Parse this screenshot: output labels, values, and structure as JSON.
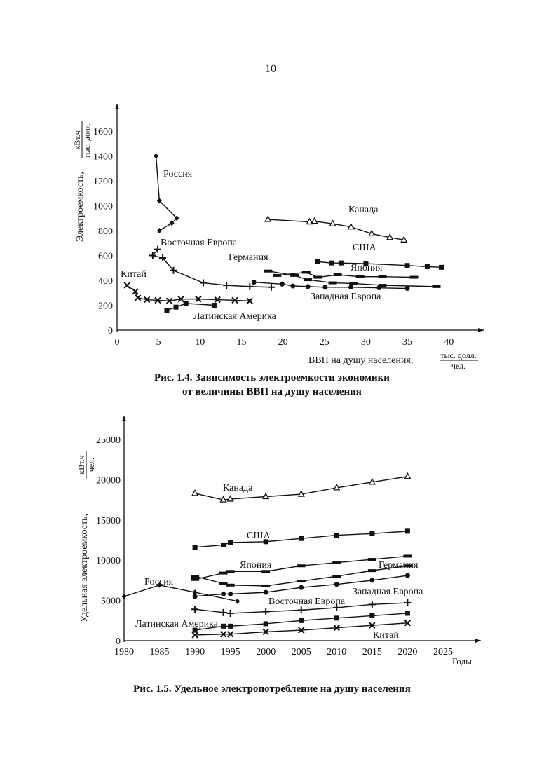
{
  "page_number": "10",
  "chart_data": [
    {
      "type": "line",
      "title": "Рис. 1.4. Зависимость электроемкости экономики",
      "subtitle": "от величины ВВП на душу населения",
      "xlabel": "ВВП на душу населения,",
      "xunit_num": "тыс. долл.",
      "xunit_den": "чел.",
      "ylabel": "Электроемкость,",
      "yunit_num": "кВт.ч",
      "yunit_den": "тыс. долл.",
      "xlim": [
        0,
        40
      ],
      "ylim": [
        0,
        1600
      ],
      "xticks": [
        "0",
        "5",
        "10",
        "15",
        "20",
        "25",
        "30",
        "35",
        "40"
      ],
      "yticks": [
        "0",
        "200",
        "400",
        "600",
        "800",
        "1000",
        "1200",
        "1400",
        "1600"
      ],
      "grid": false,
      "series": [
        {
          "name": "Россия",
          "marker": "diamond",
          "points": [
            [
              4.7,
              1400
            ],
            [
              5.1,
              1040
            ],
            [
              7.2,
              900
            ],
            [
              6.6,
              860
            ],
            [
              5.1,
              800
            ]
          ]
        },
        {
          "name": "Восточная Европа",
          "marker": "plus",
          "points": [
            [
              4.9,
              650
            ],
            [
              4.3,
              600
            ],
            [
              5.5,
              580
            ],
            [
              6.8,
              480
            ],
            [
              10.4,
              380
            ],
            [
              13.2,
              360
            ],
            [
              16,
              350
            ],
            [
              18.6,
              345
            ]
          ]
        },
        {
          "name": "Германия",
          "marker": "dash",
          "points": [
            [
              18.2,
              475
            ],
            [
              21.4,
              440
            ],
            [
              23,
              405
            ],
            [
              26,
              380
            ],
            [
              28.5,
              375
            ],
            [
              32,
              360
            ],
            [
              38.5,
              350
            ]
          ]
        },
        {
          "name": "Китай",
          "marker": "cross",
          "points": [
            [
              1.2,
              360
            ],
            [
              2.2,
              310
            ],
            [
              2.5,
              260
            ],
            [
              3.6,
              245
            ],
            [
              4.9,
              240
            ],
            [
              6.3,
              235
            ],
            [
              7.7,
              250
            ],
            [
              9.8,
              250
            ],
            [
              12.1,
              245
            ],
            [
              14.2,
              240
            ],
            [
              16,
              235
            ]
          ]
        },
        {
          "name": "Латинская Америка",
          "marker": "square",
          "points": [
            [
              6,
              160
            ],
            [
              7.1,
              185
            ],
            [
              8.3,
              215
            ],
            [
              11.7,
              200
            ]
          ]
        },
        {
          "name": "Канада",
          "marker": "triangle",
          "points": [
            [
              18.2,
              890
            ],
            [
              23.2,
              870
            ],
            [
              23.8,
              875
            ],
            [
              26,
              855
            ],
            [
              28.2,
              830
            ],
            [
              30.7,
              775
            ],
            [
              32.9,
              745
            ],
            [
              34.6,
              725
            ]
          ]
        },
        {
          "name": "США",
          "marker": "square",
          "points": [
            [
              24.2,
              550
            ],
            [
              25.9,
              540
            ],
            [
              27,
              540
            ],
            [
              30,
              535
            ],
            [
              35,
              520
            ],
            [
              37.4,
              510
            ],
            [
              39.1,
              505
            ]
          ]
        },
        {
          "name": "Япония",
          "marker": "dash",
          "points": [
            [
              19.3,
              440
            ],
            [
              22.8,
              465
            ],
            [
              24.2,
              425
            ],
            [
              26.6,
              445
            ],
            [
              29.3,
              430
            ],
            [
              32,
              430
            ],
            [
              35.8,
              425
            ]
          ]
        },
        {
          "name": "Западная Европа",
          "marker": "circle",
          "points": [
            [
              16.5,
              385
            ],
            [
              19.9,
              370
            ],
            [
              21.2,
              355
            ],
            [
              23,
              350
            ],
            [
              25.1,
              345
            ],
            [
              28.2,
              345
            ],
            [
              31.6,
              340
            ],
            [
              35,
              335
            ]
          ]
        }
      ]
    },
    {
      "type": "line",
      "title": "Рис. 1.5. Удельное электропотребление на душу населения",
      "xlabel": "Годы",
      "ylabel": "Удельная электроемкость,",
      "yunit_num": "кВт.ч",
      "yunit_den": "чел.",
      "xlim": [
        1980,
        2030
      ],
      "ylim": [
        0,
        27000
      ],
      "xticks": [
        "1980",
        "1985",
        "1990",
        "1995",
        "2000",
        "2005",
        "2010",
        "2015",
        "2020",
        "2025"
      ],
      "yticks": [
        "0",
        "5000",
        "10000",
        "15000",
        "20000",
        "25000"
      ],
      "grid": false,
      "series": [
        {
          "name": "Канада",
          "marker": "triangle",
          "points": [
            [
              1990,
              18300
            ],
            [
              1994,
              17500
            ],
            [
              1995,
              17600
            ],
            [
              2000,
              17900
            ],
            [
              2005,
              18200
            ],
            [
              2010,
              19000
            ],
            [
              2015,
              19700
            ],
            [
              2020,
              20400
            ]
          ]
        },
        {
          "name": "США",
          "marker": "square",
          "points": [
            [
              1990,
              11600
            ],
            [
              1994,
              11900
            ],
            [
              1995,
              12200
            ],
            [
              2000,
              12300
            ],
            [
              2005,
              12700
            ],
            [
              2010,
              13100
            ],
            [
              2015,
              13300
            ],
            [
              2020,
              13600
            ]
          ]
        },
        {
          "name": "Япония",
          "marker": "dash",
          "points": [
            [
              1990,
              7600
            ],
            [
              1994,
              8400
            ],
            [
              1995,
              8600
            ],
            [
              2000,
              8600
            ],
            [
              2005,
              9300
            ],
            [
              2010,
              9700
            ],
            [
              2015,
              10100
            ],
            [
              2020,
              10500
            ]
          ]
        },
        {
          "name": "Германия",
          "marker": "dash",
          "points": [
            [
              1990,
              8000
            ],
            [
              1994,
              7100
            ],
            [
              1995,
              6900
            ],
            [
              2000,
              6800
            ],
            [
              2005,
              7400
            ],
            [
              2010,
              8000
            ],
            [
              2015,
              8700
            ],
            [
              2020,
              9300
            ]
          ]
        },
        {
          "name": "Россия",
          "marker": "diamond",
          "points": [
            [
              1980,
              5500
            ],
            [
              1985,
              6900
            ],
            [
              1990,
              6000
            ],
            [
              1996,
              4900
            ]
          ]
        },
        {
          "name": "Западная Европа",
          "marker": "circle",
          "points": [
            [
              1990,
              5500
            ],
            [
              1994,
              5800
            ],
            [
              1995,
              5800
            ],
            [
              2000,
              6000
            ],
            [
              2005,
              6600
            ],
            [
              2010,
              7000
            ],
            [
              2015,
              7500
            ],
            [
              2020,
              8100
            ]
          ]
        },
        {
          "name": "Восточная Европа",
          "marker": "plus",
          "points": [
            [
              1990,
              3900
            ],
            [
              1994,
              3500
            ],
            [
              1995,
              3400
            ],
            [
              2000,
              3600
            ],
            [
              2005,
              3800
            ],
            [
              2010,
              4100
            ],
            [
              2015,
              4500
            ],
            [
              2020,
              4700
            ]
          ]
        },
        {
          "name": "Латинская Америка",
          "marker": "square",
          "points": [
            [
              1990,
              1300
            ],
            [
              1994,
              1800
            ],
            [
              1995,
              1800
            ],
            [
              2000,
              2100
            ],
            [
              2005,
              2500
            ],
            [
              2010,
              2800
            ],
            [
              2015,
              3100
            ],
            [
              2020,
              3400
            ]
          ]
        },
        {
          "name": "Китай",
          "marker": "cross",
          "points": [
            [
              1990,
              700
            ],
            [
              1994,
              800
            ],
            [
              1995,
              800
            ],
            [
              2000,
              1100
            ],
            [
              2005,
              1300
            ],
            [
              2010,
              1600
            ],
            [
              2015,
              1900
            ],
            [
              2020,
              2200
            ]
          ]
        }
      ]
    }
  ]
}
